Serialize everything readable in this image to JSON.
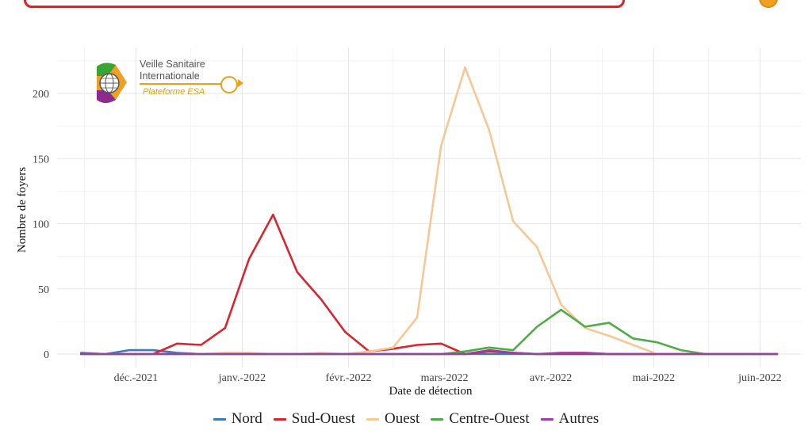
{
  "chart_data": {
    "type": "line",
    "xlabel": "Date de détection",
    "ylabel": "Nombre de foyers",
    "ylim": [
      0,
      225
    ],
    "xlim": [
      "2021-11-08",
      "2022-06-06"
    ],
    "grid": true,
    "legend_position": "bottom",
    "x_ticks": [
      {
        "date": "2021-12-01",
        "label": "déc.-2021"
      },
      {
        "date": "2022-01-01",
        "label": "janv.-2022"
      },
      {
        "date": "2022-02-01",
        "label": "févr.-2022"
      },
      {
        "date": "2022-03-01",
        "label": "mars-2022"
      },
      {
        "date": "2022-04-01",
        "label": "avr.-2022"
      },
      {
        "date": "2022-05-01",
        "label": "mai-2022"
      },
      {
        "date": "2022-06-01",
        "label": "juin-2022"
      }
    ],
    "y_ticks": [
      0,
      50,
      100,
      150,
      200
    ],
    "x": [
      "2021-11-15",
      "2021-11-22",
      "2021-11-29",
      "2021-12-06",
      "2021-12-13",
      "2021-12-20",
      "2021-12-27",
      "2022-01-03",
      "2022-01-10",
      "2022-01-17",
      "2022-01-24",
      "2022-01-31",
      "2022-02-07",
      "2022-02-14",
      "2022-02-21",
      "2022-02-28",
      "2022-03-07",
      "2022-03-14",
      "2022-03-21",
      "2022-03-28",
      "2022-04-04",
      "2022-04-11",
      "2022-04-18",
      "2022-04-25",
      "2022-05-02",
      "2022-05-09",
      "2022-05-16",
      "2022-05-23",
      "2022-05-30",
      "2022-06-06"
    ],
    "series": [
      {
        "name": "Nord",
        "color": "#3d7ab5",
        "values": [
          1,
          0,
          3,
          3,
          1,
          0,
          0,
          0,
          0,
          0,
          0,
          0,
          0,
          0,
          0,
          0,
          0,
          0,
          0,
          0,
          0,
          0,
          0,
          0,
          0,
          0,
          0,
          0,
          0,
          0
        ]
      },
      {
        "name": "Sud-Ouest",
        "color": "#d7262e",
        "values": [
          0,
          0,
          0,
          0,
          8,
          7,
          20,
          73,
          107,
          63,
          42,
          17,
          2,
          4,
          7,
          8,
          0,
          2,
          1,
          0,
          0,
          0,
          0,
          0,
          0,
          0,
          0,
          0,
          0,
          0
        ]
      },
      {
        "name": "Ouest",
        "color": "#f5c896",
        "values": [
          0,
          0,
          0,
          0,
          0,
          0,
          1,
          1,
          0,
          0,
          1,
          0,
          2,
          5,
          28,
          160,
          220,
          172,
          102,
          82,
          38,
          20,
          14,
          7,
          0,
          0,
          0,
          0,
          0,
          0
        ]
      },
      {
        "name": "Centre-Ouest",
        "color": "#4fac45",
        "values": [
          0,
          0,
          0,
          0,
          0,
          0,
          0,
          0,
          0,
          0,
          0,
          0,
          0,
          0,
          0,
          0,
          2,
          5,
          3,
          21,
          34,
          21,
          24,
          12,
          9,
          3,
          0,
          0,
          0,
          0
        ]
      },
      {
        "name": "Autres",
        "color": "#9a3fa8",
        "values": [
          0,
          0,
          0,
          0,
          0,
          0,
          0,
          0,
          0,
          0,
          0,
          0,
          0,
          0,
          0,
          0,
          0,
          3,
          1,
          0,
          1,
          1,
          0,
          0,
          0,
          0,
          0,
          0,
          0,
          0
        ]
      }
    ]
  },
  "logo": {
    "title_line1": "Veille Sanitaire",
    "title_line2": "Internationale",
    "subtitle": "Plateforme ESA"
  }
}
